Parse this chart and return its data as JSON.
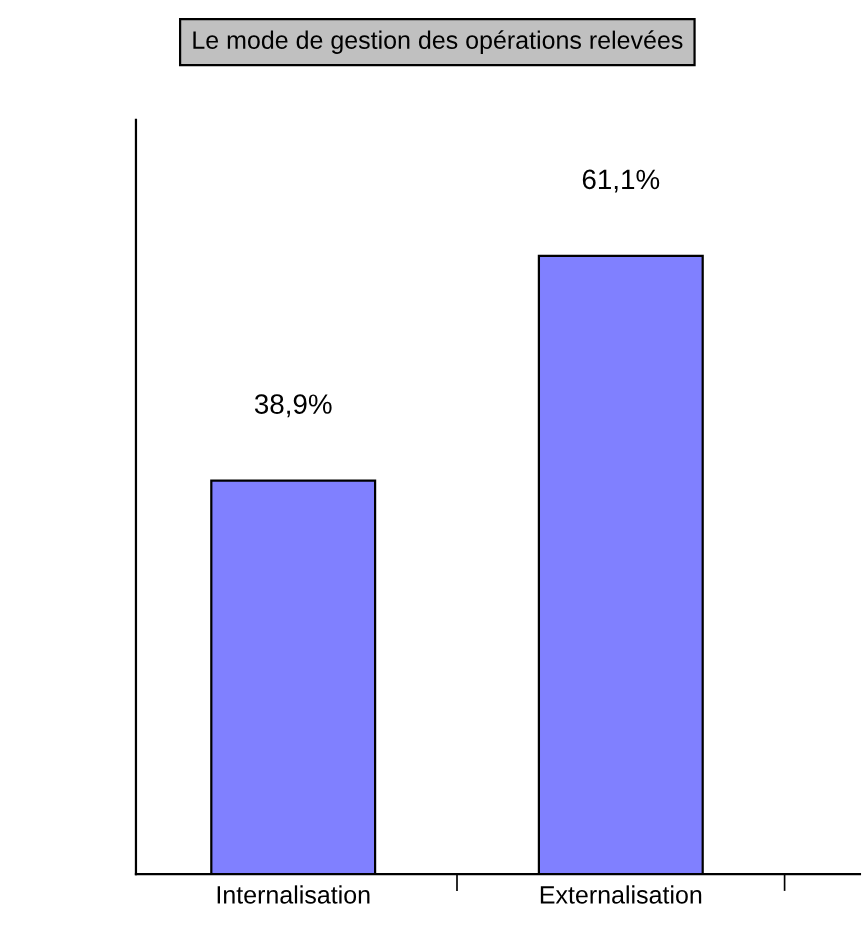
{
  "chart_data": {
    "type": "bar",
    "title": "Le mode de gestion des opérations relevées",
    "categories": [
      "Internalisation",
      "Externalisation"
    ],
    "values": [
      38.9,
      61.1
    ],
    "color": "#8080ff",
    "tick_labels": "x",
    "value_labels": [
      "38,9%",
      "61,1%"
    ],
    "grid": false,
    "legend": false
  }
}
